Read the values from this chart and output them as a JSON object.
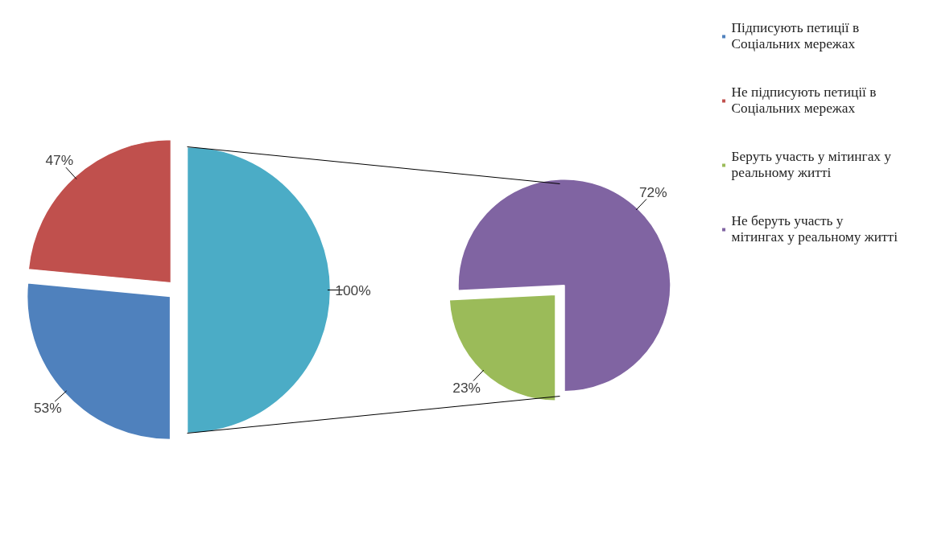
{
  "chart_data": [
    {
      "type": "pie",
      "categories": [
        "Підписують петиції в Соціальних мережах",
        "Не підписують петиції в Соціальних мережах",
        null
      ],
      "values": [
        53,
        47,
        100
      ],
      "colors": [
        "#4f81bd",
        "#c0504d",
        "#4bacc6"
      ],
      "value_labels": [
        "53%",
        "47%",
        "100%"
      ],
      "legend": "right"
    },
    {
      "type": "pie",
      "categories": [
        "Беруть участь у мітингах у реальному житті",
        "Не беруть участь у мітингах у реальному житті"
      ],
      "values": [
        23,
        72
      ],
      "colors": [
        "#9bbb59",
        "#8064a2"
      ],
      "value_labels": [
        "23%",
        "72%"
      ],
      "legend": "right"
    }
  ]
}
